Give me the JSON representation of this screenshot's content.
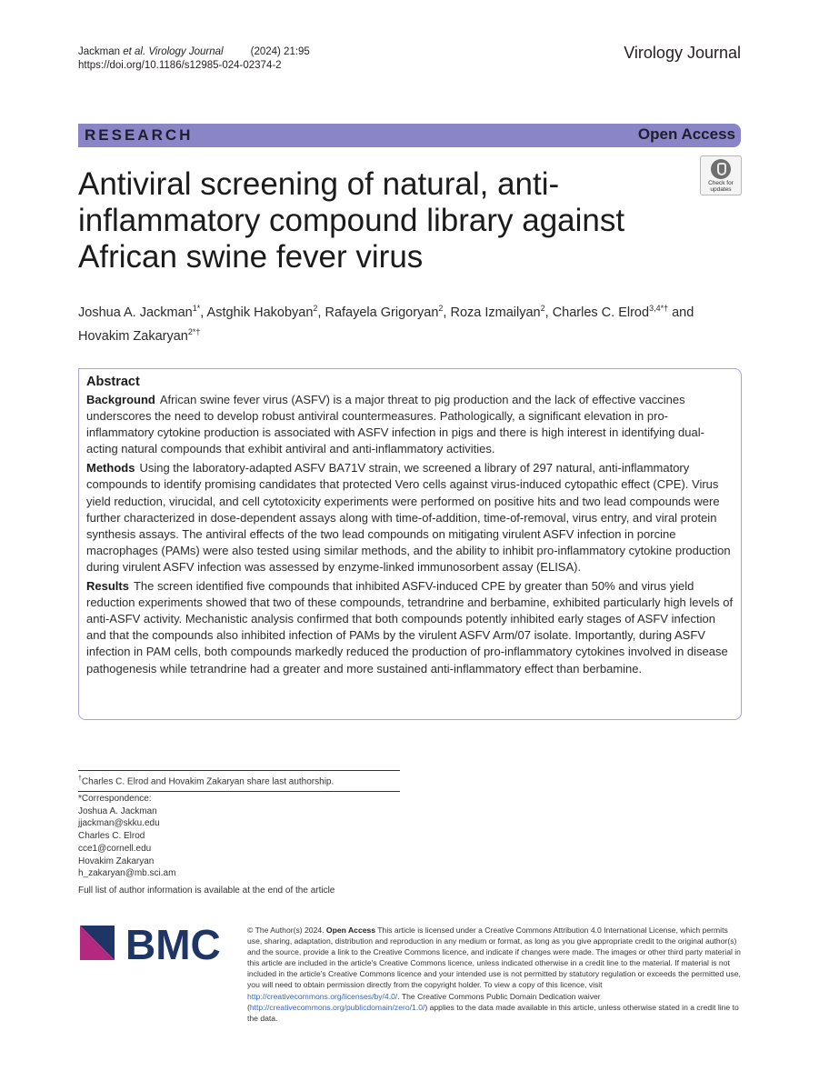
{
  "header": {
    "citation_authors": "Jackman ",
    "citation_etal_journal": "et al. Virology Journal",
    "citation_year_vol": "(2024) 21:95",
    "doi": "https://doi.org/10.1186/s12985-024-02374-2",
    "journal_name": "Virology Journal"
  },
  "banner": {
    "research_label": "RESEARCH",
    "open_access_label": "Open Access"
  },
  "check_updates": {
    "line1": "Check for",
    "line2": "updates"
  },
  "title": "Antiviral screening of natural, anti-inflammatory compound library against African swine fever virus",
  "authors": [
    {
      "name": "Joshua A. Jackman",
      "sup": "1*"
    },
    {
      "name": "Astghik Hakobyan",
      "sup": "2"
    },
    {
      "name": "Rafayela Grigoryan",
      "sup": "2"
    },
    {
      "name": "Roza Izmailyan",
      "sup": "2"
    },
    {
      "name": "Charles C. Elrod",
      "sup": "3,4*†"
    },
    {
      "name": "Hovakim Zakaryan",
      "sup": "2*†"
    }
  ],
  "authors_sep": ", ",
  "authors_and": " and",
  "abstract": {
    "heading": "Abstract",
    "sections": [
      {
        "label": "Background",
        "text": "African swine fever virus (ASFV) is a major threat to pig production and the lack of effective vaccines underscores the need to develop robust antiviral countermeasures. Pathologically, a significant elevation in pro-inflammatory cytokine production is associated with ASFV infection in pigs and there is high interest in identifying dual-acting natural compounds that exhibit antiviral and anti-inflammatory activities."
      },
      {
        "label": "Methods",
        "text": "Using the laboratory-adapted ASFV BA71V strain, we screened a library of 297 natural, anti-inflammatory compounds to identify promising candidates that protected Vero cells against virus-induced cytopathic effect (CPE). Virus yield reduction, virucidal, and cell cytotoxicity experiments were performed on positive hits and two lead compounds were further characterized in dose-dependent assays along with time-of-addition, time-of-removal, virus entry, and viral protein synthesis assays. The antiviral effects of the two lead compounds on mitigating virulent ASFV infection in porcine macrophages (PAMs) were also tested using similar methods, and the ability to inhibit pro-inflammatory cytokine production during virulent ASFV infection was assessed by enzyme-linked immunosorbent assay (ELISA)."
      },
      {
        "label": "Results",
        "text": "The screen identified five compounds that inhibited ASFV-induced CPE by greater than 50% and virus yield reduction experiments showed that two of these compounds, tetrandrine and berbamine, exhibited particularly high levels of anti-ASFV activity. Mechanistic analysis confirmed that both compounds potently inhibited early stages of ASFV infection and that the compounds also inhibited infection of PAMs by the virulent ASFV Arm/07 isolate. Importantly, during ASFV infection in PAM cells, both compounds markedly reduced the production of pro-inflammatory cytokines involved in disease pathogenesis while tetrandrine had a greater and more sustained anti-inflammatory effect than berbamine."
      }
    ]
  },
  "footnote": {
    "mark": "†",
    "text": "Charles C. Elrod and Hovakim Zakaryan share last authorship."
  },
  "correspondence": {
    "label": "*Correspondence:",
    "lines": [
      "Joshua A. Jackman",
      "jjackman@skku.edu",
      "Charles C. Elrod",
      "cce1@cornell.edu",
      "Hovakim Zakaryan",
      "h_zakaryan@mb.sci.am"
    ]
  },
  "full_list_note": "Full list of author information is available at the end of the article",
  "publisher_logo_text": "BMC",
  "license": {
    "copyright": "© The Author(s) 2024. ",
    "open_access": "Open Access",
    "text1": " This article is licensed under a Creative Commons Attribution 4.0 International License, which permits use, sharing, adaptation, distribution and reproduction in any medium or format, as long as you give appropriate credit to the original author(s) and the source, provide a link to the Creative Commons licence, and indicate if changes were made. The images or other third party material in this article are included in the article's Creative Commons licence, unless indicated otherwise in a credit line to the material. If material is not included in the article's Creative Commons licence and your intended use is not permitted by statutory regulation or exceeds the permitted use, you will need to obtain permission directly from the copyright holder. To view a copy of this licence, visit ",
    "link1": "http://creativecommons.org/licenses/by/4.0/",
    "text2": ". The Creative Commons Public Domain Dedication waiver (",
    "link2": "http://creativecommons.org/publicdomain/zero/1.0/",
    "text3": ") applies to the data made available in this article, unless otherwise stated in a credit line to the data."
  },
  "colors": {
    "banner": "#8a85c6",
    "abstract_border": "#a6a2d3",
    "bmc_dark": "#1f3566",
    "bmc_magenta": "#b5287f",
    "link": "#3a64b5"
  }
}
